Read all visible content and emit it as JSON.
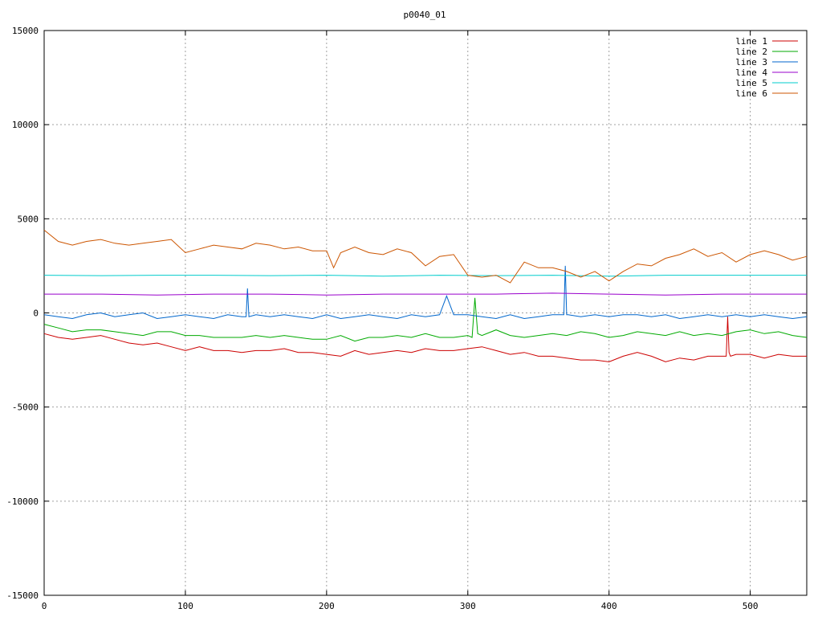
{
  "chart_data": {
    "type": "line",
    "title": "p0040_01",
    "xlabel": "",
    "ylabel": "",
    "xlim": [
      0,
      540
    ],
    "ylim": [
      -15000,
      15000
    ],
    "x_ticks": [
      0,
      100,
      200,
      300,
      400,
      500
    ],
    "y_ticks": [
      -15000,
      -10000,
      -5000,
      0,
      5000,
      10000,
      15000
    ],
    "grid": true,
    "legend_position": "top-right",
    "series": [
      {
        "name": "line 1",
        "color": "#cc0000",
        "x": [
          0,
          10,
          20,
          30,
          40,
          50,
          60,
          70,
          80,
          90,
          100,
          110,
          120,
          130,
          140,
          150,
          160,
          170,
          180,
          190,
          200,
          210,
          220,
          230,
          240,
          250,
          260,
          270,
          280,
          290,
          300,
          310,
          320,
          330,
          340,
          350,
          360,
          370,
          380,
          390,
          400,
          410,
          420,
          430,
          440,
          450,
          460,
          470,
          480,
          483,
          484,
          485,
          486,
          490,
          500,
          510,
          520,
          530,
          540
        ],
        "y": [
          -1100,
          -1300,
          -1400,
          -1300,
          -1200,
          -1400,
          -1600,
          -1700,
          -1600,
          -1800,
          -2000,
          -1800,
          -2000,
          -2000,
          -2100,
          -2000,
          -2000,
          -1900,
          -2100,
          -2100,
          -2200,
          -2300,
          -2000,
          -2200,
          -2100,
          -2000,
          -2100,
          -1900,
          -2000,
          -2000,
          -1900,
          -1800,
          -2000,
          -2200,
          -2100,
          -2300,
          -2300,
          -2400,
          -2500,
          -2500,
          -2600,
          -2300,
          -2100,
          -2300,
          -2600,
          -2400,
          -2500,
          -2300,
          -2300,
          -2300,
          -200,
          -2100,
          -2300,
          -2200,
          -2200,
          -2400,
          -2200,
          -2300,
          -2300
        ]
      },
      {
        "name": "line 2",
        "color": "#00aa00",
        "x": [
          0,
          10,
          20,
          30,
          40,
          50,
          60,
          70,
          80,
          90,
          100,
          110,
          120,
          130,
          140,
          150,
          160,
          170,
          180,
          190,
          200,
          210,
          220,
          230,
          240,
          250,
          260,
          270,
          280,
          290,
          300,
          303,
          305,
          307,
          310,
          320,
          330,
          340,
          350,
          360,
          370,
          380,
          390,
          400,
          410,
          420,
          430,
          440,
          450,
          460,
          470,
          480,
          490,
          500,
          510,
          520,
          530,
          540
        ],
        "y": [
          -600,
          -800,
          -1000,
          -900,
          -900,
          -1000,
          -1100,
          -1200,
          -1000,
          -1000,
          -1200,
          -1200,
          -1300,
          -1300,
          -1300,
          -1200,
          -1300,
          -1200,
          -1300,
          -1400,
          -1400,
          -1200,
          -1500,
          -1300,
          -1300,
          -1200,
          -1300,
          -1100,
          -1300,
          -1300,
          -1200,
          -1300,
          800,
          -1100,
          -1200,
          -900,
          -1200,
          -1300,
          -1200,
          -1100,
          -1200,
          -1000,
          -1100,
          -1300,
          -1200,
          -1000,
          -1100,
          -1200,
          -1000,
          -1200,
          -1100,
          -1200,
          -1000,
          -900,
          -1100,
          -1000,
          -1200,
          -1300
        ]
      },
      {
        "name": "line 3",
        "color": "#0066cc",
        "x": [
          0,
          10,
          20,
          30,
          40,
          50,
          60,
          70,
          80,
          90,
          100,
          110,
          120,
          130,
          140,
          143,
          144,
          145,
          150,
          160,
          170,
          180,
          190,
          200,
          210,
          220,
          230,
          240,
          250,
          260,
          270,
          280,
          285,
          290,
          300,
          310,
          320,
          330,
          340,
          350,
          360,
          368,
          369,
          370,
          371,
          380,
          390,
          400,
          410,
          420,
          430,
          440,
          450,
          460,
          470,
          480,
          490,
          500,
          510,
          520,
          530,
          540
        ],
        "y": [
          -100,
          -200,
          -300,
          -100,
          0,
          -200,
          -100,
          0,
          -300,
          -200,
          -100,
          -200,
          -300,
          -100,
          -200,
          -200,
          1300,
          -200,
          -100,
          -200,
          -100,
          -200,
          -300,
          -100,
          -300,
          -200,
          -100,
          -200,
          -300,
          -100,
          -200,
          -100,
          900,
          -100,
          -100,
          -200,
          -300,
          -100,
          -300,
          -200,
          -100,
          -100,
          2500,
          -100,
          -100,
          -200,
          -100,
          -200,
          -100,
          -100,
          -200,
          -100,
          -300,
          -200,
          -100,
          -200,
          -100,
          -200,
          -100,
          -200,
          -300,
          -200
        ]
      },
      {
        "name": "line 4",
        "color": "#9900cc",
        "x": [
          0,
          40,
          80,
          120,
          160,
          200,
          240,
          280,
          320,
          360,
          400,
          440,
          480,
          520,
          540
        ],
        "y": [
          1000,
          1000,
          950,
          1000,
          1000,
          950,
          1000,
          1000,
          1000,
          1050,
          1000,
          950,
          1000,
          1000,
          1000
        ]
      },
      {
        "name": "line 5",
        "color": "#00cccc",
        "x": [
          0,
          40,
          80,
          120,
          160,
          200,
          240,
          280,
          320,
          360,
          400,
          440,
          480,
          520,
          540
        ],
        "y": [
          2000,
          1980,
          2000,
          2000,
          1980,
          2000,
          1950,
          2000,
          1980,
          2000,
          1950,
          2000,
          2000,
          2000,
          2000
        ]
      },
      {
        "name": "line 6",
        "color": "#cc5500",
        "x": [
          0,
          10,
          20,
          30,
          40,
          50,
          60,
          70,
          80,
          90,
          100,
          110,
          120,
          130,
          140,
          150,
          160,
          170,
          180,
          190,
          200,
          205,
          210,
          220,
          230,
          240,
          250,
          260,
          270,
          280,
          290,
          300,
          310,
          320,
          330,
          340,
          350,
          360,
          370,
          380,
          390,
          400,
          410,
          420,
          430,
          440,
          450,
          460,
          470,
          480,
          490,
          500,
          510,
          520,
          530,
          540
        ],
        "y": [
          4400,
          3800,
          3600,
          3800,
          3900,
          3700,
          3600,
          3700,
          3800,
          3900,
          3200,
          3400,
          3600,
          3500,
          3400,
          3700,
          3600,
          3400,
          3500,
          3300,
          3300,
          2400,
          3200,
          3500,
          3200,
          3100,
          3400,
          3200,
          2500,
          3000,
          3100,
          2000,
          1900,
          2000,
          1600,
          2700,
          2400,
          2400,
          2200,
          1900,
          2200,
          1700,
          2200,
          2600,
          2500,
          2900,
          3100,
          3400,
          3000,
          3200,
          2700,
          3100,
          3300,
          3100,
          2800,
          3000
        ]
      }
    ]
  }
}
